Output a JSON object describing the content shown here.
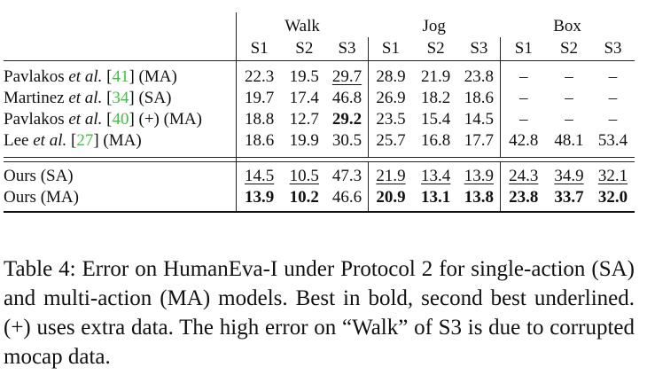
{
  "table": {
    "group_headers": [
      "Walk",
      "Jog",
      "Box"
    ],
    "sub_headers": [
      "S1",
      "S2",
      "S3",
      "S1",
      "S2",
      "S3",
      "S1",
      "S2",
      "S3"
    ],
    "rows": [
      {
        "name_prefix": "Pavlakos ",
        "name_italic": "et al.",
        "cite_open": " [",
        "cite": "41",
        "cite_close": "]",
        "suffix": " (MA)",
        "cells": [
          "22.3",
          "19.5",
          "29.7",
          "28.9",
          "21.9",
          "23.8",
          "–",
          "–",
          "–"
        ]
      },
      {
        "name_prefix": "Martinez ",
        "name_italic": "et al.",
        "cite_open": " [",
        "cite": "34",
        "cite_close": "]",
        "suffix": " (SA)",
        "cells": [
          "19.7",
          "17.4",
          "46.8",
          "26.9",
          "18.2",
          "18.6",
          "–",
          "–",
          "–"
        ]
      },
      {
        "name_prefix": "Pavlakos ",
        "name_italic": "et al.",
        "cite_open": " [",
        "cite": "40",
        "cite_close": "]",
        "suffix": " (+) (MA)",
        "cells": [
          "18.8",
          "12.7",
          "29.2",
          "23.5",
          "15.4",
          "14.5",
          "–",
          "–",
          "–"
        ]
      },
      {
        "name_prefix": "Lee ",
        "name_italic": "et al.",
        "cite_open": " [",
        "cite": "27",
        "cite_close": "]",
        "suffix": " (MA)",
        "cells": [
          "18.6",
          "19.9",
          "30.5",
          "25.7",
          "16.8",
          "17.7",
          "42.8",
          "48.1",
          "53.4"
        ]
      }
    ],
    "ours_rows": [
      {
        "name": "Ours (SA)",
        "cells": [
          "14.5",
          "10.5",
          "47.3",
          "21.9",
          "13.4",
          "13.9",
          "24.3",
          "34.9",
          "32.1"
        ]
      },
      {
        "name": "Ours (MA)",
        "cells": [
          "13.9",
          "10.2",
          "46.6",
          "20.9",
          "13.1",
          "13.8",
          "23.8",
          "33.7",
          "32.0"
        ]
      }
    ]
  },
  "caption": {
    "text": "Table 4: Error on HumanEva-I under Protocol 2 for single-action (SA) and multi-action (MA) models. Best in bold, second best underlined. (+) uses extra data. The high error on “Walk” of S3 is due to corrupted mocap data."
  }
}
